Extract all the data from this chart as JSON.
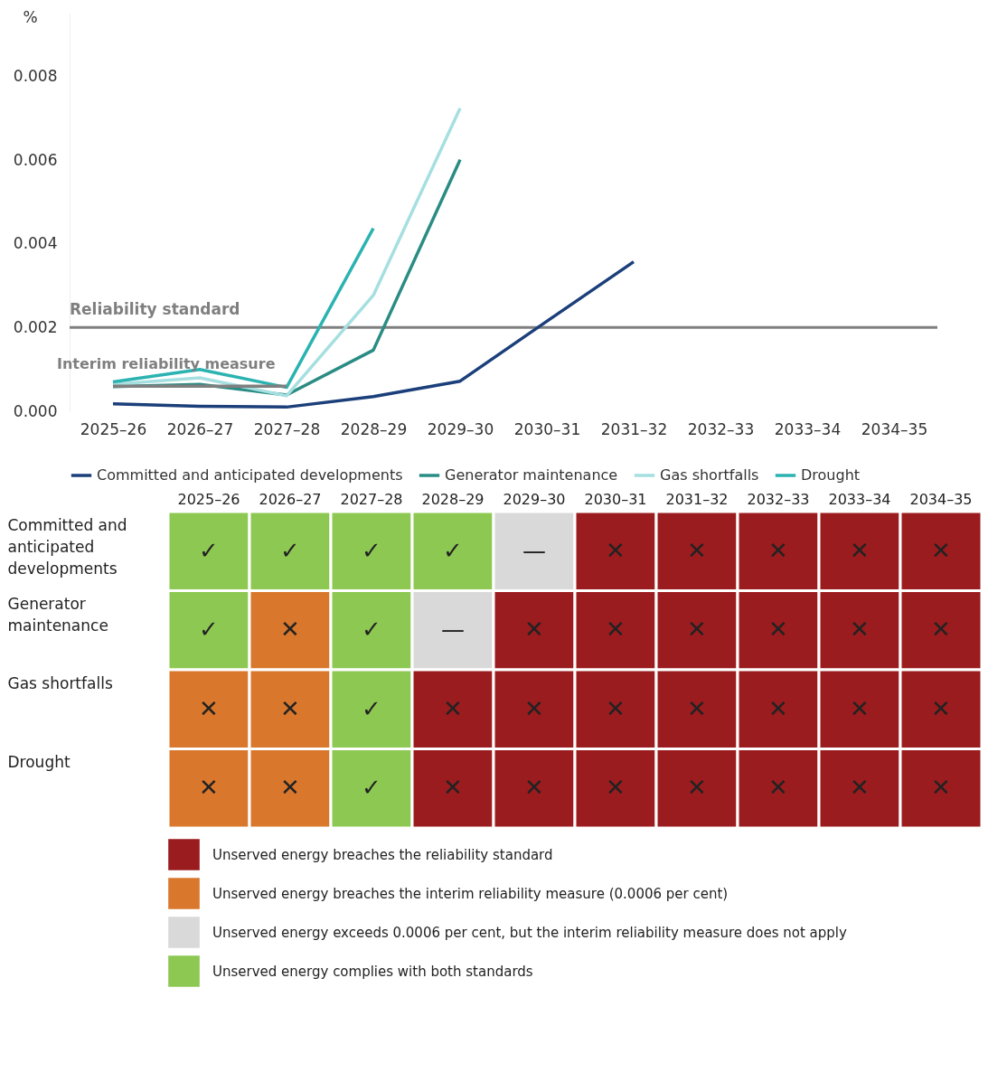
{
  "chart_data": [
    {
      "type": "line",
      "ylabel": "%",
      "categories": [
        "2025–26",
        "2026–27",
        "2027–28",
        "2028–29",
        "2029–30",
        "2030–31",
        "2031–32",
        "2032–33",
        "2033–34",
        "2034–35"
      ],
      "ylim": [
        0,
        0.0095
      ],
      "yticks": [
        {
          "value": 0,
          "label": "0.000"
        },
        {
          "value": 0.002,
          "label": "0.002"
        },
        {
          "value": 0.004,
          "label": "0.004"
        },
        {
          "value": 0.006,
          "label": "0.006"
        },
        {
          "value": 0.008,
          "label": "0.008"
        }
      ],
      "series": [
        {
          "name": "Interim reliability measure",
          "color": "#7f7f7f",
          "values": [
            0.0006,
            0.0006,
            0.0006,
            null,
            null,
            null,
            null,
            null,
            null,
            null
          ]
        },
        {
          "name": "Committed and anticipated developments",
          "color": "#1b3f7a",
          "values": [
            0.00018,
            0.00012,
            0.0001,
            0.00035,
            0.00072,
            0.00215,
            0.00357,
            null,
            null,
            null
          ]
        },
        {
          "name": "Generator maintenance",
          "color": "#2a8c84",
          "values": [
            0.00059,
            0.00064,
            0.00039,
            0.00146,
            0.00601,
            null,
            null,
            null,
            null,
            null
          ]
        },
        {
          "name": "Gas shortfalls",
          "color": "#a6dfe0",
          "values": [
            0.00064,
            0.0008,
            0.00037,
            0.00277,
            0.00724,
            null,
            null,
            null,
            null,
            null
          ]
        },
        {
          "name": "Drought",
          "color": "#2bb3b1",
          "values": [
            0.0007,
            0.001,
            0.00057,
            0.00437,
            null,
            null,
            null,
            null,
            null,
            null
          ]
        }
      ],
      "ref_lines": [
        {
          "axis": "y",
          "value": 0.002,
          "label": "Reliability standard",
          "color": "#7f7f7f"
        }
      ],
      "grid": false,
      "legend": "bottom"
    },
    {
      "type": "other",
      "categories": [
        "2025–26",
        "2026–27",
        "2027–28",
        "2028–29",
        "2029–30",
        "2030–31",
        "2031–32",
        "2032–33",
        "2033–34",
        "2034–35"
      ],
      "y_categories": [
        "Committed and anticipated developments",
        "Generator maintenance",
        "Gas shortfalls",
        "Drought"
      ],
      "cell_labels": [
        [
          "✓",
          "✓",
          "✓",
          "✓",
          "—",
          "✕",
          "✕",
          "✕",
          "✕",
          "✕"
        ],
        [
          "✓",
          "✕",
          "✓",
          "—",
          "✕",
          "✕",
          "✕",
          "✕",
          "✕",
          "✕"
        ],
        [
          "✕",
          "✕",
          "✓",
          "✕",
          "✕",
          "✕",
          "✕",
          "✕",
          "✕",
          "✕"
        ],
        [
          "✕",
          "✕",
          "✓",
          "✕",
          "✕",
          "✕",
          "✕",
          "✕",
          "✕",
          "✕"
        ]
      ],
      "colors": [
        [
          "#8dc853",
          "#8dc853",
          "#8dc853",
          "#8dc853",
          "#d9d9d9",
          "#9b1c1f",
          "#9b1c1f",
          "#9b1c1f",
          "#9b1c1f",
          "#9b1c1f"
        ],
        [
          "#8dc853",
          "#d9782d",
          "#8dc853",
          "#d9d9d9",
          "#9b1c1f",
          "#9b1c1f",
          "#9b1c1f",
          "#9b1c1f",
          "#9b1c1f",
          "#9b1c1f"
        ],
        [
          "#d9782d",
          "#d9782d",
          "#8dc853",
          "#9b1c1f",
          "#9b1c1f",
          "#9b1c1f",
          "#9b1c1f",
          "#9b1c1f",
          "#9b1c1f",
          "#9b1c1f"
        ],
        [
          "#d9782d",
          "#d9782d",
          "#8dc853",
          "#9b1c1f",
          "#9b1c1f",
          "#9b1c1f",
          "#9b1c1f",
          "#9b1c1f",
          "#9b1c1f",
          "#9b1c1f"
        ]
      ],
      "series": [
        {
          "name": "Unserved energy breaches the reliability standard",
          "color": "#9b1c1f",
          "values": [
            null,
            null,
            null,
            null,
            null,
            null,
            null,
            null,
            null,
            null
          ]
        },
        {
          "name": "Unserved energy breaches the interim reliability measure (0.0006 per cent)",
          "color": "#d9782d",
          "values": [
            null,
            null,
            null,
            null,
            null,
            null,
            null,
            null,
            null,
            null
          ]
        },
        {
          "name": "Unserved energy exceeds 0.0006 per cent, but the interim reliability measure does not apply",
          "color": "#d9d9d9",
          "values": [
            null,
            null,
            null,
            null,
            null,
            null,
            null,
            null,
            null,
            null
          ]
        },
        {
          "name": "Unserved energy complies with both standards",
          "color": "#8dc853",
          "values": [
            null,
            null,
            null,
            null,
            null,
            null,
            null,
            null,
            null,
            null
          ]
        }
      ],
      "legend": "bottom"
    }
  ]
}
